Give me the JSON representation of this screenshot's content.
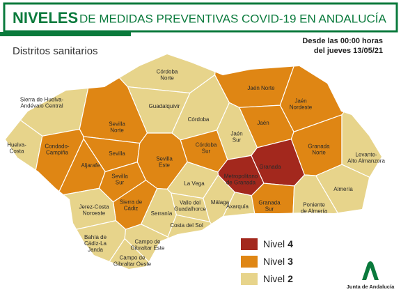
{
  "header": {
    "title_bold": "NIVELES",
    "title_rest": "DE MEDIDAS PREVENTIVAS COVID-19 EN ANDALUCÍA",
    "subtitle": "Distritos sanitarios",
    "date_lines": [
      "Desde las 00:00 horas",
      "del jueves 13/05/21"
    ]
  },
  "legend": {
    "items": [
      {
        "label": "Nivel",
        "level": 4,
        "color": "#a3281d"
      },
      {
        "label": "Nivel",
        "level": 3,
        "color": "#df8614"
      },
      {
        "label": "Nivel",
        "level": 2,
        "color": "#e7d48b"
      }
    ]
  },
  "districts": [
    {
      "label": [
        "Córdoba",
        "Norte"
      ],
      "level": 2
    },
    {
      "label": [
        "Sierra de Huelva-",
        "Andévalo Central"
      ],
      "level": 2
    },
    {
      "label": [
        "Guadalquivir"
      ],
      "level": 2
    },
    {
      "label": [
        "Córdoba"
      ],
      "level": 2
    },
    {
      "label": [
        "Jaén Norte"
      ],
      "level": 3
    },
    {
      "label": [
        "Jaén",
        "Nordeste"
      ],
      "level": 3
    },
    {
      "label": [
        "Jaén"
      ],
      "level": 3
    },
    {
      "label": [
        "Jaén",
        "Sur"
      ],
      "level": 2
    },
    {
      "label": [
        "Sevilla",
        "Norte"
      ],
      "level": 3
    },
    {
      "label": [
        "Huelva-",
        "Costa"
      ],
      "level": 2
    },
    {
      "label": [
        "Condado-",
        "Campiña"
      ],
      "level": 3
    },
    {
      "label": [
        "Sevilla"
      ],
      "level": 3
    },
    {
      "label": [
        "Córdoba",
        "Sur"
      ],
      "level": 3
    },
    {
      "label": [
        "Sevilla",
        "Este"
      ],
      "level": 3
    },
    {
      "label": [
        "Granada",
        "Norte"
      ],
      "level": 3
    },
    {
      "label": [
        "Levante-",
        "Alto Almanzora"
      ],
      "level": 2
    },
    {
      "label": [
        "Aljarafe"
      ],
      "level": 3
    },
    {
      "label": [
        "Granada"
      ],
      "level": 4
    },
    {
      "label": [
        "Metropolitano",
        "de Granada"
      ],
      "level": 4
    },
    {
      "label": [
        "Sevilla",
        "Sur"
      ],
      "level": 3
    },
    {
      "label": [
        "La Vega"
      ],
      "level": 2
    },
    {
      "label": [
        "Almería"
      ],
      "level": 2
    },
    {
      "label": [
        "Sierra de",
        "Cádiz"
      ],
      "level": 3
    },
    {
      "label": [
        "Jerez-Costa",
        "Noroeste"
      ],
      "level": 2
    },
    {
      "label": [
        "Valle del",
        "Guadalhorce"
      ],
      "level": 2
    },
    {
      "label": [
        "Málaga"
      ],
      "level": 2
    },
    {
      "label": [
        "Axarquía"
      ],
      "level": 2
    },
    {
      "label": [
        "Granada",
        "Sur"
      ],
      "level": 3
    },
    {
      "label": [
        "Poniente",
        "de Almería"
      ],
      "level": 2
    },
    {
      "label": [
        "Serranía"
      ],
      "level": 2
    },
    {
      "label": [
        "Costa del Sol"
      ],
      "level": 2
    },
    {
      "label": [
        "Bahía de",
        "Cádiz-La",
        "Janda"
      ],
      "level": 2
    },
    {
      "label": [
        "Campo de",
        "Gibraltar Este"
      ],
      "level": 2
    },
    {
      "label": [
        "Campo de",
        "Gibraltar Oeste"
      ],
      "level": 2
    }
  ],
  "logo": {
    "text": "Junta de Andalucía"
  }
}
